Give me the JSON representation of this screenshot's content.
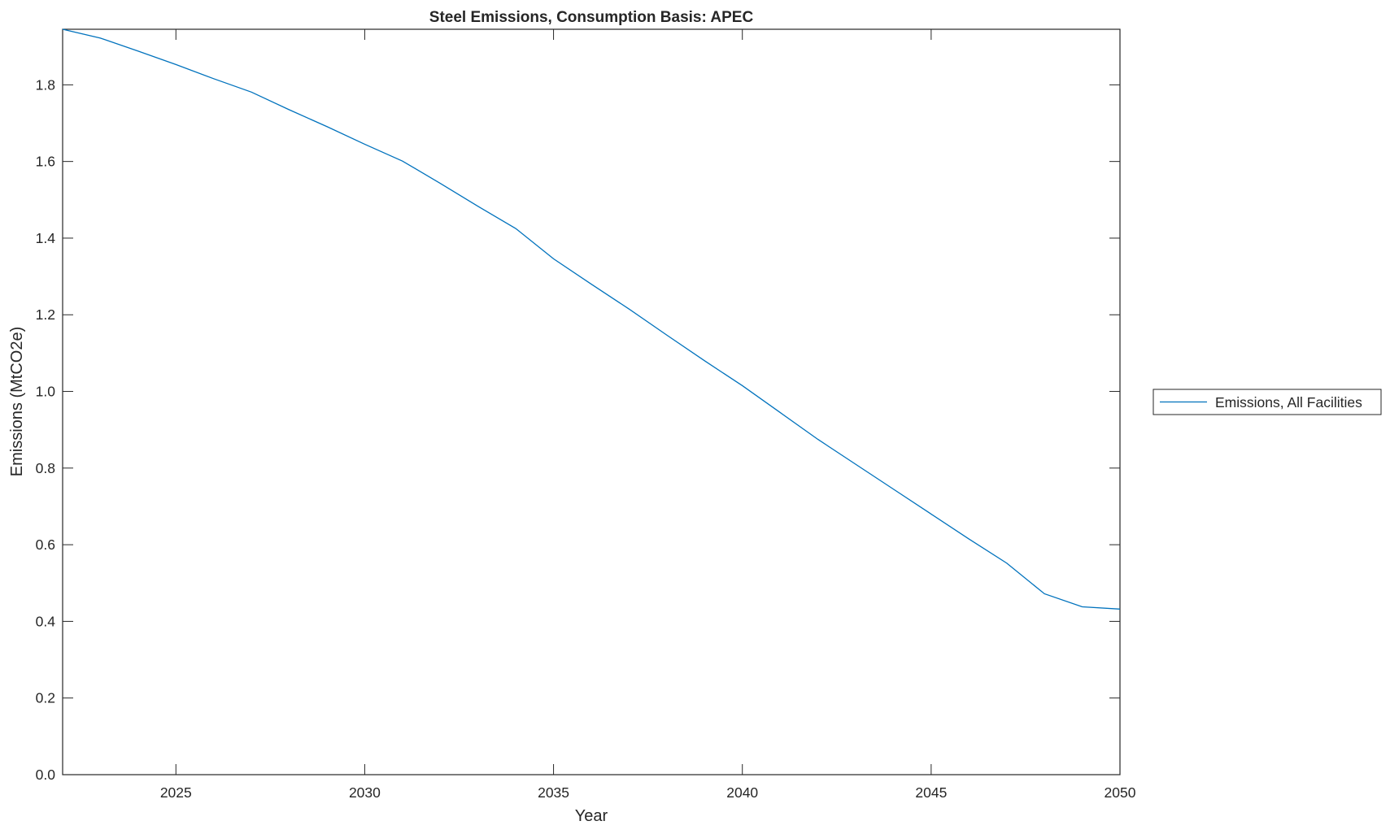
{
  "chart_data": {
    "type": "line",
    "title": "Steel Emissions, Consumption Basis: APEC",
    "xlabel": "Year",
    "ylabel": "Emissions (MtCO2e)",
    "xlim": [
      2022,
      2050
    ],
    "ylim": [
      0,
      1.945
    ],
    "xticks": [
      "2025",
      "2030",
      "2035",
      "2040",
      "2045",
      "2050"
    ],
    "yticks": [
      "0.0",
      "0.2",
      "0.4",
      "0.6",
      "0.8",
      "1.0",
      "1.2",
      "1.4",
      "1.6",
      "1.8"
    ],
    "grid": false,
    "legend_position": "outside-right",
    "x": [
      2022,
      2023,
      2024,
      2025,
      2026,
      2027,
      2028,
      2029,
      2030,
      2031,
      2032,
      2033,
      2034,
      2035,
      2036,
      2037,
      2038,
      2039,
      2040,
      2041,
      2042,
      2043,
      2044,
      2045,
      2046,
      2047,
      2048,
      2049,
      2050
    ],
    "series": [
      {
        "name": "Emissions, All Facilities",
        "color": "#0072BD",
        "values": [
          1.945,
          1.922,
          1.888,
          1.853,
          1.816,
          1.781,
          1.735,
          1.691,
          1.645,
          1.601,
          1.543,
          1.483,
          1.425,
          1.346,
          1.28,
          1.215,
          1.147,
          1.08,
          1.015,
          0.945,
          0.875,
          0.81,
          0.745,
          0.68,
          0.615,
          0.552,
          0.472,
          0.438,
          0.432
        ]
      }
    ]
  }
}
